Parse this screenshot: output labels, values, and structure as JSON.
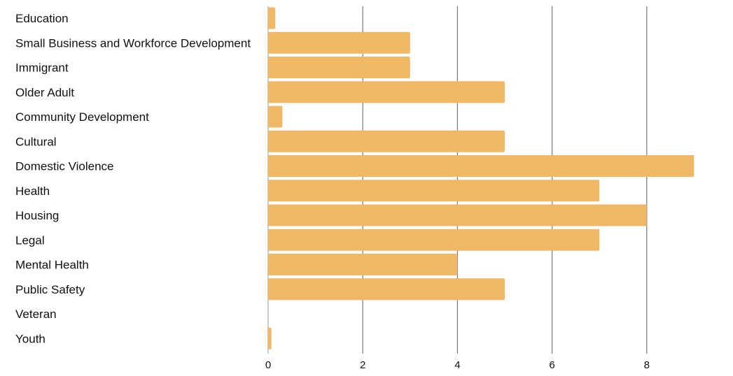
{
  "chart_data": {
    "type": "bar",
    "orientation": "horizontal",
    "categories": [
      "Education",
      "Small Business and Workforce Development",
      "Immigrant",
      "Older Adult",
      "Community Development",
      "Cultural",
      "Domestic Violence",
      "Health",
      "Housing",
      "Legal",
      "Mental Health",
      "Public Safety",
      "Veteran",
      "Youth"
    ],
    "values": [
      0.15,
      3,
      3,
      5,
      0.3,
      5,
      9,
      7,
      8,
      7,
      4,
      5,
      0,
      0.07
    ],
    "xlim": [
      0,
      9
    ],
    "xticks": [
      "0",
      "2",
      "4",
      "6",
      "8"
    ],
    "grid": true,
    "bar_color": "#f0b866",
    "gridline_color": "#7a7a7a",
    "title": "",
    "xlabel": "",
    "ylabel": ""
  }
}
